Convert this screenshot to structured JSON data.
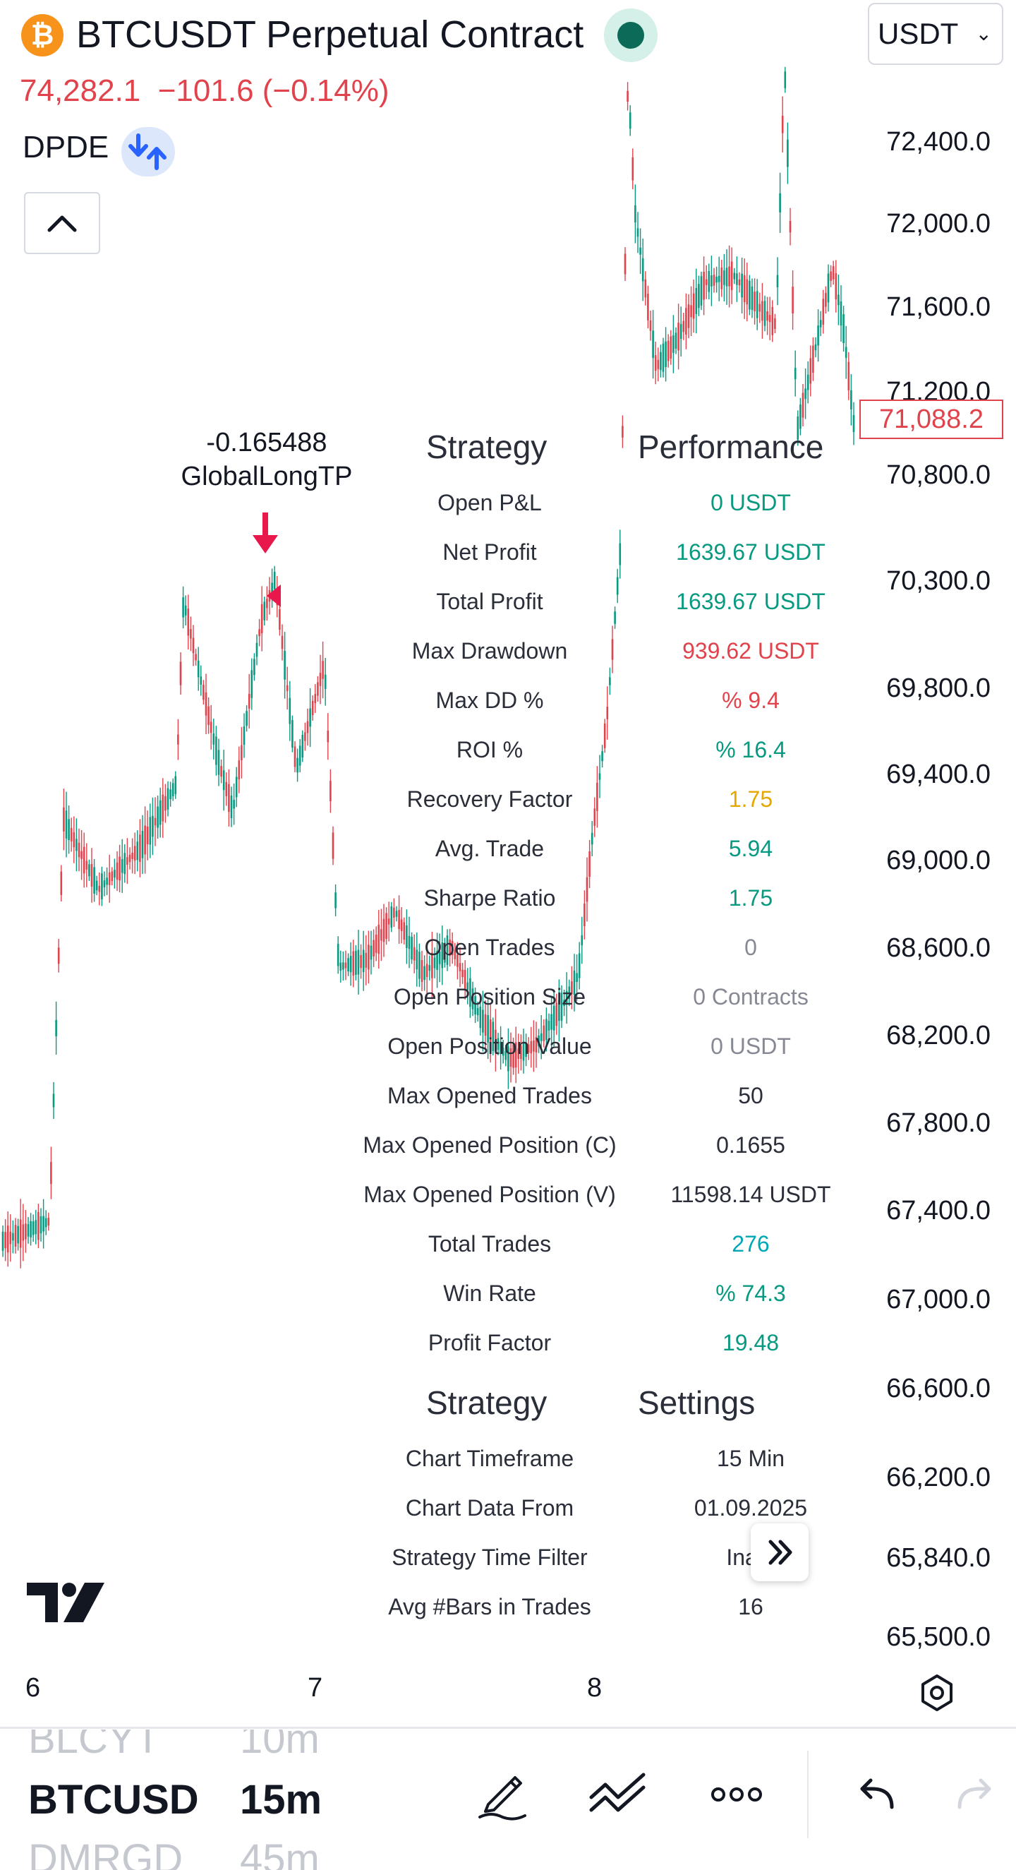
{
  "header": {
    "symbol_title": "BTCUSDT Perpetual Contract",
    "logo_glyph": "₿",
    "currency": "USDT",
    "chevron": "⌄"
  },
  "price": {
    "last": "74,282.1",
    "change": "−101.6 (−0.14%)"
  },
  "indicator": {
    "name": "DPDE"
  },
  "price_axis": {
    "labels": [
      "72,400.0",
      "72,000.0",
      "71,600.0",
      "71,200.0",
      "70,800.0",
      "70,300.0",
      "69,800.0",
      "69,400.0",
      "69,000.0",
      "68,600.0",
      "68,200.0",
      "67,800.0",
      "67,400.0",
      "67,000.0",
      "66,600.0",
      "66,200.0",
      "65,840.0",
      "65,500.0"
    ],
    "current": "71,088.2"
  },
  "marker": {
    "value": "-0.165488",
    "label": "GlobalLongTP"
  },
  "performance": {
    "header_left": "Strategy",
    "header_right": "Performance",
    "rows": [
      {
        "label": "Open P&L",
        "value": "0 USDT",
        "color": "#089981"
      },
      {
        "label": "Net Profit",
        "value": "1639.67 USDT",
        "color": "#089981"
      },
      {
        "label": "Total Profit",
        "value": "1639.67 USDT",
        "color": "#089981"
      },
      {
        "label": "Max Drawdown",
        "value": "939.62 USDT",
        "color": "#e0434c"
      },
      {
        "label": "Max DD %",
        "value": "% 9.4",
        "color": "#e0434c"
      },
      {
        "label": "ROI %",
        "value": "% 16.4",
        "color": "#089981"
      },
      {
        "label": "Recovery Factor",
        "value": "1.75",
        "color": "#e6a700"
      },
      {
        "label": "Avg. Trade",
        "value": "5.94",
        "color": "#089981"
      },
      {
        "label": "Sharpe Ratio",
        "value": "1.75",
        "color": "#089981"
      },
      {
        "label": "Open Trades",
        "value": "0",
        "color": "#868993"
      },
      {
        "label": "Open Position Size",
        "value": "0 Contracts",
        "color": "#868993"
      },
      {
        "label": "Open Position Value",
        "value": "0 USDT",
        "color": "#868993"
      },
      {
        "label": "Max Opened Trades",
        "value": "50",
        "color": "#2a2e39"
      },
      {
        "label": "Max Opened Position (C)",
        "value": "0.1655",
        "color": "#2a2e39"
      },
      {
        "label": "Max Opened Position (V)",
        "value": "11598.14 USDT",
        "color": "#2a2e39"
      },
      {
        "label": "Total Trades",
        "value": "276",
        "color": "#00a8b5"
      },
      {
        "label": "Win Rate",
        "value": "% 74.3",
        "color": "#089981"
      },
      {
        "label": "Profit Factor",
        "value": "19.48",
        "color": "#089981"
      }
    ]
  },
  "settings": {
    "header_left": "Strategy",
    "header_right": "Settings",
    "rows": [
      {
        "label": "Chart Timeframe",
        "value": "15 Min"
      },
      {
        "label": "Chart Data From",
        "value": "01.09.2025"
      },
      {
        "label": "Strategy Time Filter",
        "value": "Inact"
      },
      {
        "label": "Avg #Bars in Trades",
        "value": "16"
      }
    ]
  },
  "time_axis": {
    "ticks": [
      "6",
      "7",
      "8"
    ]
  },
  "toolbar": {
    "symbols": [
      "BLCYT",
      "BTCUSD",
      "DMRGD"
    ],
    "intervals": [
      "10m",
      "15m",
      "45m"
    ],
    "icons": [
      "pencil-icon",
      "trend-lines-icon",
      "more-icon",
      "undo-icon",
      "redo-icon"
    ]
  },
  "colors": {
    "up": "#089981",
    "down": "#e0434c",
    "accent": "#2962ff"
  }
}
